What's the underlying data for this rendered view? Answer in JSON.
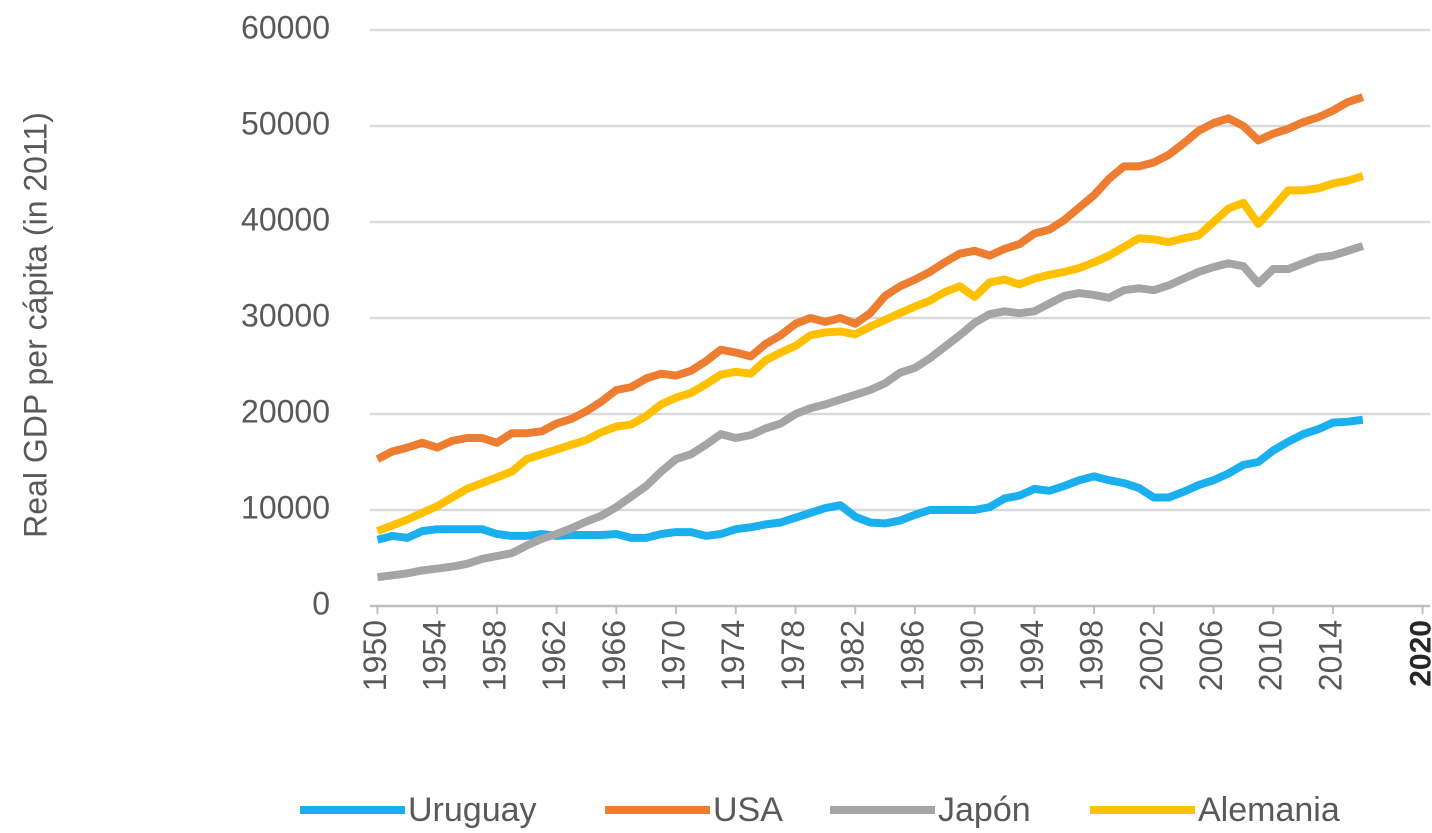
{
  "chart_data": {
    "type": "line",
    "y_label": "Real GDP per cápita (in 2011)",
    "x": [
      1950,
      1951,
      1952,
      1953,
      1954,
      1955,
      1956,
      1957,
      1958,
      1959,
      1960,
      1961,
      1962,
      1963,
      1964,
      1965,
      1966,
      1967,
      1968,
      1969,
      1970,
      1971,
      1972,
      1973,
      1974,
      1975,
      1976,
      1977,
      1978,
      1979,
      1980,
      1981,
      1982,
      1983,
      1984,
      1985,
      1986,
      1987,
      1988,
      1989,
      1990,
      1991,
      1992,
      1993,
      1994,
      1995,
      1996,
      1997,
      1998,
      1999,
      2000,
      2001,
      2002,
      2003,
      2004,
      2005,
      2006,
      2007,
      2008,
      2009,
      2010,
      2011,
      2012,
      2013,
      2014,
      2015,
      2016
    ],
    "series": [
      {
        "name": "Uruguay",
        "color": "#1ab0f0",
        "values": [
          6900,
          7300,
          7100,
          7800,
          8000,
          8000,
          8000,
          8000,
          7500,
          7300,
          7300,
          7500,
          7300,
          7400,
          7400,
          7400,
          7500,
          7100,
          7100,
          7500,
          7700,
          7700,
          7300,
          7500,
          8000,
          8200,
          8500,
          8700,
          9200,
          9700,
          10200,
          10500,
          9300,
          8700,
          8600,
          8900,
          9500,
          10000,
          10000,
          10000,
          10000,
          10300,
          11200,
          11500,
          12200,
          12000,
          12500,
          13100,
          13500,
          13100,
          12800,
          12300,
          11300,
          11300,
          11900,
          12600,
          13100,
          13800,
          14700,
          15000,
          16200,
          17100,
          17900,
          18400,
          19100,
          19200,
          19400
        ]
      },
      {
        "name": "USA",
        "color": "#ed7d31",
        "values": [
          15300,
          16100,
          16500,
          17000,
          16500,
          17200,
          17500,
          17500,
          17000,
          18000,
          18000,
          18200,
          19000,
          19500,
          20300,
          21300,
          22500,
          22800,
          23700,
          24200,
          24000,
          24500,
          25500,
          26700,
          26400,
          26000,
          27300,
          28200,
          29400,
          30000,
          29600,
          30000,
          29400,
          30500,
          32300,
          33300,
          34000,
          34800,
          35800,
          36700,
          37000,
          36500,
          37200,
          37700,
          38800,
          39200,
          40200,
          41500,
          42800,
          44500,
          45800,
          45800,
          46200,
          47000,
          48200,
          49500,
          50300,
          50800,
          50000,
          48500,
          49200,
          49700,
          50400,
          50900,
          51600,
          52500,
          53000
        ]
      },
      {
        "name": "Japón",
        "color": "#a5a5a5",
        "values": [
          3000,
          3200,
          3400,
          3700,
          3900,
          4100,
          4400,
          4900,
          5200,
          5500,
          6300,
          7000,
          7500,
          8100,
          8800,
          9400,
          10300,
          11400,
          12500,
          14000,
          15300,
          15800,
          16800,
          17900,
          17500,
          17800,
          18500,
          19000,
          20000,
          20600,
          21000,
          21500,
          22000,
          22500,
          23200,
          24300,
          24800,
          25800,
          27000,
          28200,
          29500,
          30400,
          30700,
          30500,
          30700,
          31500,
          32300,
          32600,
          32400,
          32100,
          32900,
          33100,
          32900,
          33400,
          34100,
          34800,
          35300,
          35700,
          35400,
          33600,
          35100,
          35100,
          35700,
          36300,
          36500,
          37000,
          37500
        ]
      },
      {
        "name": "Alemania",
        "color": "#ffc000",
        "values": [
          7800,
          8400,
          9000,
          9700,
          10400,
          11300,
          12200,
          12800,
          13400,
          14000,
          15300,
          15800,
          16300,
          16800,
          17300,
          18100,
          18700,
          18900,
          19800,
          21000,
          21700,
          22200,
          23100,
          24100,
          24400,
          24200,
          25600,
          26400,
          27100,
          28200,
          28500,
          28600,
          28300,
          29100,
          29800,
          30500,
          31200,
          31800,
          32700,
          33300,
          32200,
          33700,
          34000,
          33500,
          34100,
          34500,
          34800,
          35200,
          35800,
          36500,
          37400,
          38300,
          38200,
          37900,
          38300,
          38600,
          40000,
          41400,
          42000,
          39800,
          41500,
          43300,
          43300,
          43500,
          44000,
          44300,
          44800
        ]
      }
    ],
    "xlim": [
      1949.5,
      2020.5
    ],
    "xticks": [
      1950,
      1954,
      1958,
      1962,
      1966,
      1970,
      1974,
      1978,
      1982,
      1986,
      1990,
      1994,
      1998,
      2002,
      2006,
      2010,
      2014,
      2020
    ],
    "ylim": [
      0,
      60000
    ],
    "yticks": [
      0,
      10000,
      20000,
      30000,
      40000,
      50000,
      60000
    ],
    "grid": true,
    "legend": "bottom"
  }
}
